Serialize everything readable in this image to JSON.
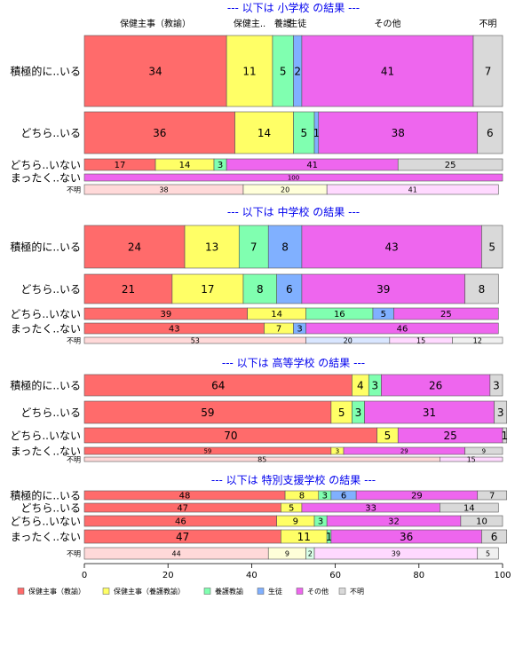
{
  "chart_data": {
    "type": "bar",
    "orientation": "horizontal-stacked-percent",
    "xlim": [
      0,
      100
    ],
    "xticks": [
      0,
      20,
      40,
      60,
      80,
      100
    ],
    "categories": [
      "保健主事（教諭）",
      "保健主事（養護教諭）",
      "養護教諭",
      "生徒",
      "その他",
      "不明"
    ],
    "colors": [
      "#ff6b6b",
      "#ffff66",
      "#80ffb0",
      "#80b0ff",
      "#ee66ee",
      "#d9d9d9"
    ],
    "light_colors": [
      "#ffd9d9",
      "#ffffd9",
      "#d9ffe8",
      "#d9e6ff",
      "#ffd9ff",
      "#f0f0f0"
    ],
    "top_header_labels": [
      "保健主事（教諭）",
      "保健主..",
      "養護",
      "生徒",
      "その他",
      "不明"
    ],
    "panels": [
      {
        "title": "--- 以下は 小学校 の結果 ---",
        "rows": [
          {
            "label": "積極的に..いる",
            "values": [
              34,
              11,
              5,
              2,
              41,
              7
            ]
          },
          {
            "label": "どちら..いる",
            "values": [
              36,
              14,
              5,
              1,
              38,
              6
            ]
          },
          {
            "label": "どちら..いない",
            "values": [
              17,
              14,
              3,
              0,
              41,
              25
            ]
          },
          {
            "label": "まったく..ない",
            "values": [
              0,
              0,
              0,
              0,
              100,
              0
            ]
          },
          {
            "label": "不明",
            "values": [
              38,
              20,
              0,
              0,
              41,
              0
            ]
          }
        ]
      },
      {
        "title": "--- 以下は 中学校 の結果 ---",
        "rows": [
          {
            "label": "積極的に..いる",
            "values": [
              24,
              13,
              7,
              8,
              43,
              5
            ]
          },
          {
            "label": "どちら..いる",
            "values": [
              21,
              17,
              8,
              6,
              39,
              8
            ]
          },
          {
            "label": "どちら..いない",
            "values": [
              39,
              14,
              16,
              5,
              25,
              0
            ]
          },
          {
            "label": "まったく..ない",
            "values": [
              43,
              7,
              0,
              3,
              46,
              0
            ]
          },
          {
            "label": "不明",
            "values": [
              53,
              0,
              0,
              20,
              15,
              12
            ]
          }
        ]
      },
      {
        "title": "--- 以下は 高等学校 の結果 ---",
        "rows": [
          {
            "label": "積極的に..いる",
            "values": [
              64,
              4,
              3,
              0,
              26,
              3
            ]
          },
          {
            "label": "どちら..いる",
            "values": [
              59,
              5,
              3,
              0,
              31,
              3
            ]
          },
          {
            "label": "どちら..いない",
            "values": [
              70,
              5,
              0,
              0,
              25,
              1
            ]
          },
          {
            "label": "まったく..ない",
            "values": [
              59,
              3,
              0,
              0,
              29,
              9
            ]
          },
          {
            "label": "不明",
            "values": [
              85,
              0,
              0,
              0,
              15,
              0
            ]
          }
        ]
      },
      {
        "title": "--- 以下は 特別支援学校 の結果 ---",
        "rows": [
          {
            "label": "積極的に..いる",
            "values": [
              48,
              8,
              3,
              6,
              29,
              7
            ]
          },
          {
            "label": "どちら..いる",
            "values": [
              47,
              5,
              0,
              0,
              33,
              14
            ]
          },
          {
            "label": "どちら..いない",
            "values": [
              46,
              9,
              3,
              0,
              32,
              10
            ]
          },
          {
            "label": "まったく..ない",
            "values": [
              47,
              11,
              1,
              0,
              36,
              6
            ]
          },
          {
            "label": "不明",
            "values": [
              44,
              9,
              2,
              0,
              39,
              5
            ]
          }
        ]
      }
    ],
    "legend": {
      "position": "bottom",
      "entries": [
        "保健主事（教諭）",
        "保健主事（養護教諭）",
        "養護教諭",
        "生徒",
        "その他",
        "不明"
      ]
    }
  }
}
